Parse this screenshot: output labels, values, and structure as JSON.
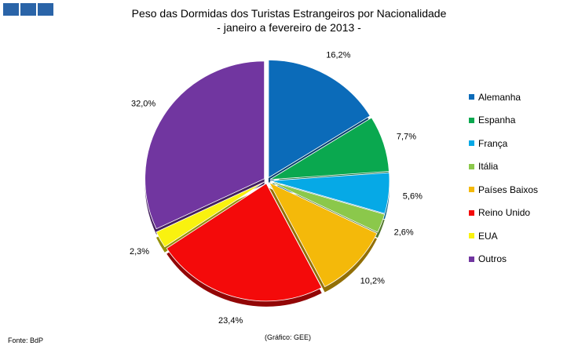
{
  "chart_data": {
    "type": "pie",
    "title": "Peso das Dormidas dos Turistas Estrangeiros por Nacionalidade",
    "subtitle": "- janeiro a fevereiro de 2013 -",
    "slices": [
      {
        "label": "Alemanha",
        "value": 16.2,
        "display": "16,2%",
        "color": "#0b6bb9"
      },
      {
        "label": "Espanha",
        "value": 7.7,
        "display": "7,7%",
        "color": "#0aa84f"
      },
      {
        "label": "França",
        "value": 5.6,
        "display": "5,6%",
        "color": "#06a9e6"
      },
      {
        "label": "Itália",
        "value": 2.6,
        "display": "2,6%",
        "color": "#8bc84b"
      },
      {
        "label": "Países Baixos",
        "value": 10.2,
        "display": "10,2%",
        "color": "#f4b90a"
      },
      {
        "label": "Reino Unido",
        "value": 23.4,
        "display": "23,4%",
        "color": "#f40a0a"
      },
      {
        "label": "EUA",
        "value": 2.3,
        "display": "2,3%",
        "color": "#f9f20f"
      },
      {
        "label": "Outros",
        "value": 32.0,
        "display": "32,0%",
        "color": "#7136a0"
      }
    ],
    "legend_position": "right"
  },
  "footer": {
    "source": "Fonte: BdP",
    "credit": "(Gráfico: GEE)"
  },
  "logo": {
    "color": "#2a64a8"
  }
}
